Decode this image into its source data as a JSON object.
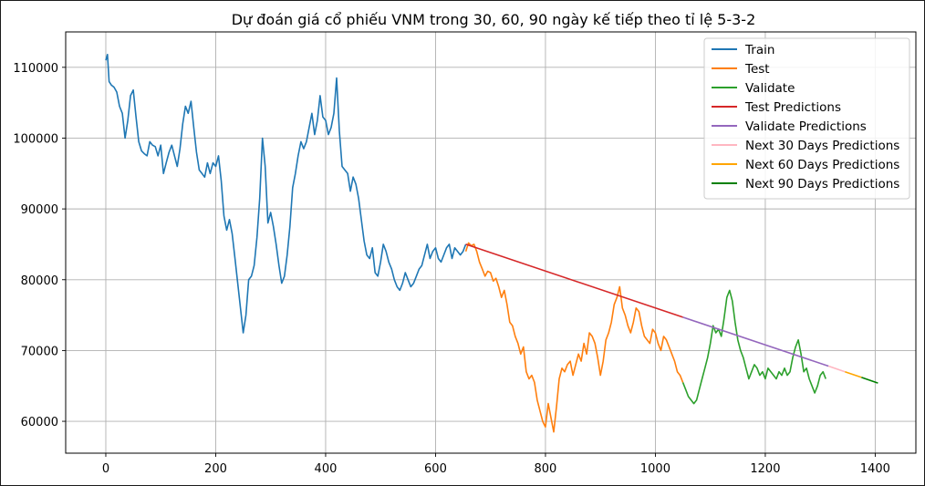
{
  "chart_data": {
    "type": "line",
    "title": "Dự đoán giá cổ phiếu VNM trong 30, 60, 90 ngày kế tiếp theo tỉ lệ 5-3-2",
    "xlabel": "",
    "ylabel": "",
    "xlim": [
      -73,
      1474
    ],
    "ylim": [
      55500,
      115000
    ],
    "xticks": [
      0,
      200,
      400,
      600,
      800,
      1000,
      1200,
      1400
    ],
    "yticks": [
      60000,
      70000,
      80000,
      90000,
      100000,
      110000
    ],
    "xtick_labels": [
      "0",
      "200",
      "400",
      "600",
      "800",
      "1000",
      "1200",
      "1400"
    ],
    "ytick_labels": [
      "60000",
      "70000",
      "80000",
      "90000",
      "100000",
      "110000"
    ],
    "grid": true,
    "legend_position": "top-right",
    "series": [
      {
        "name": "Train",
        "color": "#1f77b4",
        "x": [
          0,
          3,
          6,
          10,
          15,
          20,
          25,
          30,
          35,
          40,
          45,
          50,
          55,
          60,
          65,
          70,
          75,
          80,
          85,
          90,
          95,
          100,
          105,
          110,
          115,
          120,
          125,
          130,
          135,
          140,
          145,
          150,
          155,
          160,
          165,
          170,
          175,
          180,
          185,
          190,
          195,
          200,
          205,
          210,
          215,
          220,
          225,
          230,
          235,
          240,
          245,
          250,
          255,
          260,
          265,
          270,
          275,
          280,
          285,
          290,
          295,
          300,
          305,
          310,
          315,
          320,
          325,
          330,
          335,
          340,
          345,
          350,
          355,
          360,
          365,
          370,
          375,
          380,
          385,
          390,
          395,
          400,
          405,
          410,
          415,
          420,
          425,
          430,
          435,
          440,
          445,
          450,
          455,
          460,
          465,
          470,
          475,
          480,
          485,
          490,
          495,
          500,
          505,
          510,
          515,
          520,
          525,
          530,
          535,
          540,
          545,
          550,
          555,
          560,
          565,
          570,
          575,
          580,
          585,
          590,
          595,
          600,
          605,
          610,
          615,
          620,
          625,
          630,
          635,
          640,
          645,
          650,
          655
        ],
        "y": [
          111000,
          111800,
          108000,
          107500,
          107200,
          106500,
          104500,
          103500,
          100000,
          102500,
          106000,
          106800,
          103000,
          99500,
          98200,
          97800,
          97500,
          99500,
          99000,
          98800,
          97500,
          99000,
          95000,
          96500,
          98000,
          99000,
          97500,
          96000,
          98500,
          102000,
          104500,
          103500,
          105200,
          101500,
          98000,
          95500,
          95000,
          94500,
          96500,
          95000,
          96500,
          96000,
          97500,
          94000,
          89000,
          87000,
          88500,
          86500,
          83000,
          79500,
          76000,
          72500,
          75000,
          80000,
          80500,
          82000,
          86000,
          91500,
          100000,
          96000,
          88000,
          89500,
          87500,
          85000,
          82000,
          79500,
          80500,
          83500,
          87500,
          93000,
          95000,
          97500,
          99500,
          98500,
          99500,
          101500,
          103500,
          100500,
          102500,
          106000,
          103000,
          102500,
          100500,
          101500,
          103500,
          108500,
          101000,
          96000,
          95500,
          95000,
          92500,
          94500,
          93500,
          91500,
          88500,
          85500,
          83500,
          83000,
          84500,
          81000,
          80500,
          82500,
          85000,
          84000,
          82500,
          81500,
          80000,
          79000,
          78500,
          79500,
          81000,
          80000,
          79000,
          79500,
          80500,
          81500,
          82000,
          83500,
          85000,
          83000,
          84000,
          84500,
          83000,
          82500,
          83500,
          84500,
          85000,
          83000,
          84500,
          84000,
          83500,
          84000,
          85000
        ]
      },
      {
        "name": "Test",
        "color": "#ff7f0e",
        "x": [
          655,
          660,
          665,
          670,
          675,
          680,
          685,
          690,
          695,
          700,
          705,
          710,
          715,
          720,
          725,
          730,
          735,
          740,
          745,
          750,
          755,
          760,
          765,
          770,
          775,
          780,
          785,
          790,
          795,
          800,
          805,
          810,
          815,
          820,
          825,
          830,
          835,
          840,
          845,
          850,
          855,
          860,
          865,
          870,
          875,
          880,
          885,
          890,
          895,
          900,
          905,
          910,
          915,
          920,
          925,
          930,
          935,
          940,
          945,
          950,
          955,
          960,
          965,
          970,
          975,
          980,
          985,
          990,
          995,
          1000,
          1005,
          1010,
          1015,
          1020,
          1025,
          1030,
          1035,
          1040,
          1045,
          1050
        ],
        "y": [
          84000,
          85200,
          84800,
          85000,
          84000,
          82500,
          81500,
          80500,
          81200,
          81000,
          79800,
          80200,
          79000,
          77500,
          78500,
          76500,
          74000,
          73500,
          72000,
          71000,
          69500,
          70500,
          67000,
          66000,
          66500,
          65500,
          63000,
          61500,
          60000,
          59200,
          62500,
          60500,
          58500,
          62000,
          66000,
          67500,
          67000,
          68000,
          68500,
          66500,
          68000,
          69500,
          68500,
          71000,
          69500,
          72500,
          72000,
          71000,
          69000,
          66500,
          68500,
          71500,
          72500,
          74000,
          76500,
          77500,
          79000,
          76000,
          75000,
          73500,
          72500,
          74000,
          76000,
          75500,
          73500,
          72000,
          71500,
          71000,
          73000,
          72500,
          71000,
          70000,
          72000,
          71500,
          70500,
          69500,
          68500,
          67000,
          66500,
          65500
        ]
      },
      {
        "name": "Validate",
        "color": "#2ca02c",
        "x": [
          1050,
          1055,
          1060,
          1065,
          1070,
          1075,
          1080,
          1085,
          1090,
          1095,
          1100,
          1105,
          1110,
          1115,
          1120,
          1125,
          1130,
          1135,
          1140,
          1145,
          1150,
          1155,
          1160,
          1165,
          1170,
          1175,
          1180,
          1185,
          1190,
          1195,
          1200,
          1205,
          1210,
          1215,
          1220,
          1225,
          1230,
          1235,
          1240,
          1245,
          1250,
          1255,
          1260,
          1265,
          1270,
          1275,
          1280,
          1285,
          1290,
          1295,
          1300,
          1305,
          1310
        ],
        "y": [
          65500,
          64500,
          63500,
          63000,
          62500,
          63000,
          64500,
          66000,
          67500,
          69000,
          71000,
          73500,
          72500,
          73000,
          72000,
          74500,
          77500,
          78500,
          77000,
          74000,
          71500,
          70000,
          69000,
          67500,
          66000,
          67000,
          68000,
          67500,
          66500,
          67000,
          66000,
          67500,
          67000,
          66500,
          66000,
          67000,
          66500,
          67500,
          66500,
          67000,
          69000,
          70500,
          71500,
          69500,
          67000,
          67500,
          66000,
          65000,
          64000,
          65000,
          66500,
          67000,
          66000
        ]
      },
      {
        "name": "Test Predictions",
        "color": "#d62728",
        "x": [
          655,
          1050
        ],
        "y": [
          85000,
          74700
        ]
      },
      {
        "name": "Validate Predictions",
        "color": "#9467bd",
        "x": [
          1050,
          1315
        ],
        "y": [
          74700,
          67800
        ]
      },
      {
        "name": "Next 30 Days Predictions",
        "color": "#ffb6c1",
        "x": [
          1315,
          1345
        ],
        "y": [
          67800,
          67000
        ]
      },
      {
        "name": "Next 60 Days Predictions",
        "color": "#ffa500",
        "x": [
          1345,
          1375
        ],
        "y": [
          67000,
          66200
        ]
      },
      {
        "name": "Next 90 Days Predictions",
        "color": "#008000",
        "x": [
          1375,
          1405
        ],
        "y": [
          66200,
          65400
        ]
      }
    ]
  }
}
